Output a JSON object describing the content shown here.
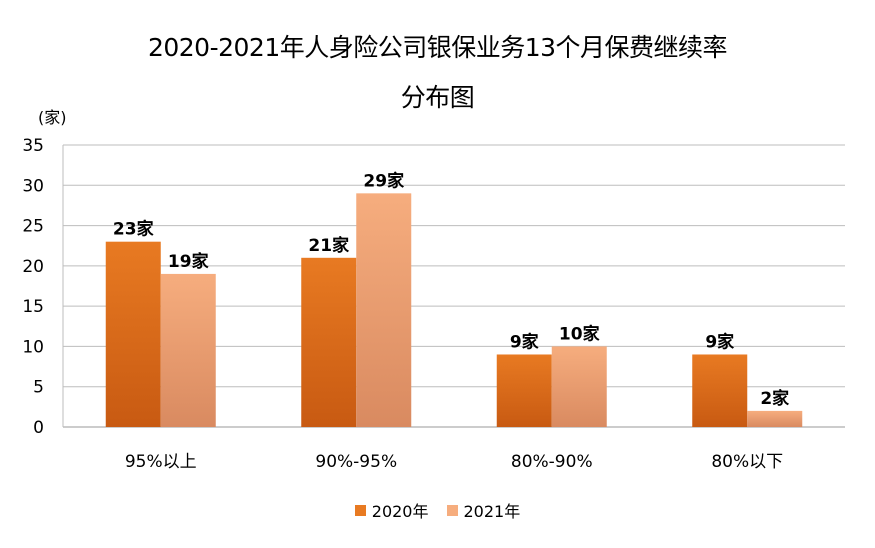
{
  "chart_data": {
    "type": "bar",
    "title": "2020-2021年人身险公司银保业务13个月保费继续率",
    "subtitle": "分布图",
    "ylabel": "(家)",
    "xlabel": "",
    "categories": [
      "95%以上",
      "90%-95%",
      "80%-90%",
      "80%以下"
    ],
    "ylim": [
      0,
      35
    ],
    "yticks": [
      0,
      5,
      10,
      15,
      20,
      25,
      30,
      35
    ],
    "grid": true,
    "legend_position": "bottom",
    "series": [
      {
        "name": "2020年",
        "values": [
          23,
          21,
          9,
          9
        ],
        "labels": [
          "23家",
          "21家",
          "9家",
          "9家"
        ],
        "color_top": "#E87A22",
        "color_bottom": "#C85A12"
      },
      {
        "name": "2021年",
        "values": [
          19,
          29,
          10,
          2
        ],
        "labels": [
          "19家",
          "29家",
          "10家",
          "2家"
        ],
        "color_top": "#F6AD7E",
        "color_bottom": "#D98A60"
      }
    ]
  }
}
